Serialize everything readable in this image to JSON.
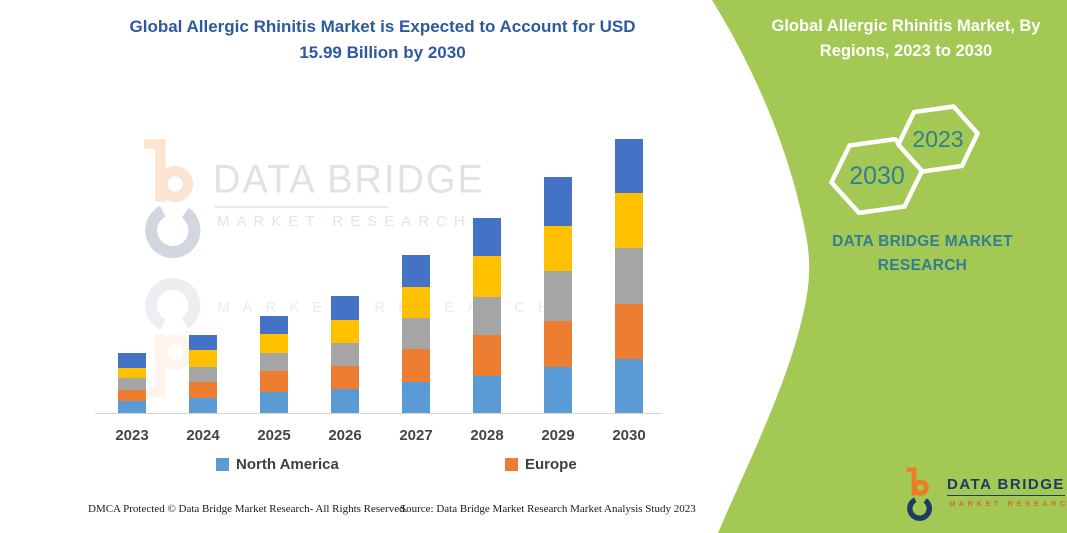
{
  "title": {
    "line1": "Global Allergic Rhinitis Market is Expected to Account for USD",
    "line2": "15.99 Billion by 2030",
    "color": "#2D5A9E"
  },
  "side_panel": {
    "heading_line1": "Global Allergic Rhinitis Market, By",
    "heading_line2": "Regions, 2023 to 2030",
    "hexagons": [
      {
        "label": "2030"
      },
      {
        "label": "2023"
      }
    ],
    "brand": "DATA BRIDGE MARKET RESEARCH",
    "bg_color": "#A3C853",
    "heading_color": "#FFFFFF",
    "accent_text_color": "#337E93"
  },
  "watermark": {
    "line1": "DATA BRIDGE",
    "line2": "MARKET RESEARCH",
    "line3": "MARKET RESEARCH"
  },
  "footer": {
    "left": "DMCA Protected © Data Bridge Market Research-  All Rights Reserved.",
    "right": "Source: Data Bridge Market Research  Market Analysis Study 2023"
  },
  "logo": {
    "name": "DATA BRIDGE",
    "sub": "MARKET RESEARCH",
    "orange": "#EF7B25",
    "navy": "#1E3A66"
  },
  "chart_data": {
    "type": "bar",
    "stacked": true,
    "unit": "USD Billion",
    "categories": [
      "2023",
      "2024",
      "2025",
      "2026",
      "2027",
      "2028",
      "2029",
      "2030"
    ],
    "series": [
      {
        "name": "North America",
        "color": "#5B9BD5",
        "in_legend": true,
        "values": [
          0.7,
          0.9,
          1.22,
          1.4,
          1.81,
          2.18,
          2.68,
          3.13
        ]
      },
      {
        "name": "Europe",
        "color": "#ED7D31",
        "in_legend": true,
        "values": [
          0.64,
          0.91,
          1.25,
          1.36,
          1.95,
          2.39,
          2.66,
          3.22
        ]
      },
      {
        "name": "unlabeled-gray",
        "color": "#A5A5A5",
        "in_legend": false,
        "values": [
          0.7,
          0.88,
          1.03,
          1.36,
          1.81,
          2.23,
          2.92,
          3.26
        ]
      },
      {
        "name": "unlabeled-yellow",
        "color": "#FFC000",
        "in_legend": false,
        "values": [
          0.58,
          1.01,
          1.09,
          1.36,
          1.78,
          2.37,
          2.62,
          3.21
        ]
      },
      {
        "name": "unlabeled-darkblue",
        "color": "#4472C4",
        "in_legend": false,
        "values": [
          0.87,
          0.9,
          1.05,
          1.42,
          1.85,
          2.19,
          2.87,
          3.17
        ]
      }
    ],
    "totals": [
      3.49,
      4.6,
      5.64,
      6.9,
      9.2,
      11.36,
      13.75,
      15.99
    ],
    "legend": [
      "North America",
      "Europe"
    ],
    "ylim": [
      0,
      16
    ],
    "grid": false,
    "legend_position": "bottom",
    "value_anchor": "2030 total = 15.99 per chart title; other values estimated from bar heights"
  }
}
